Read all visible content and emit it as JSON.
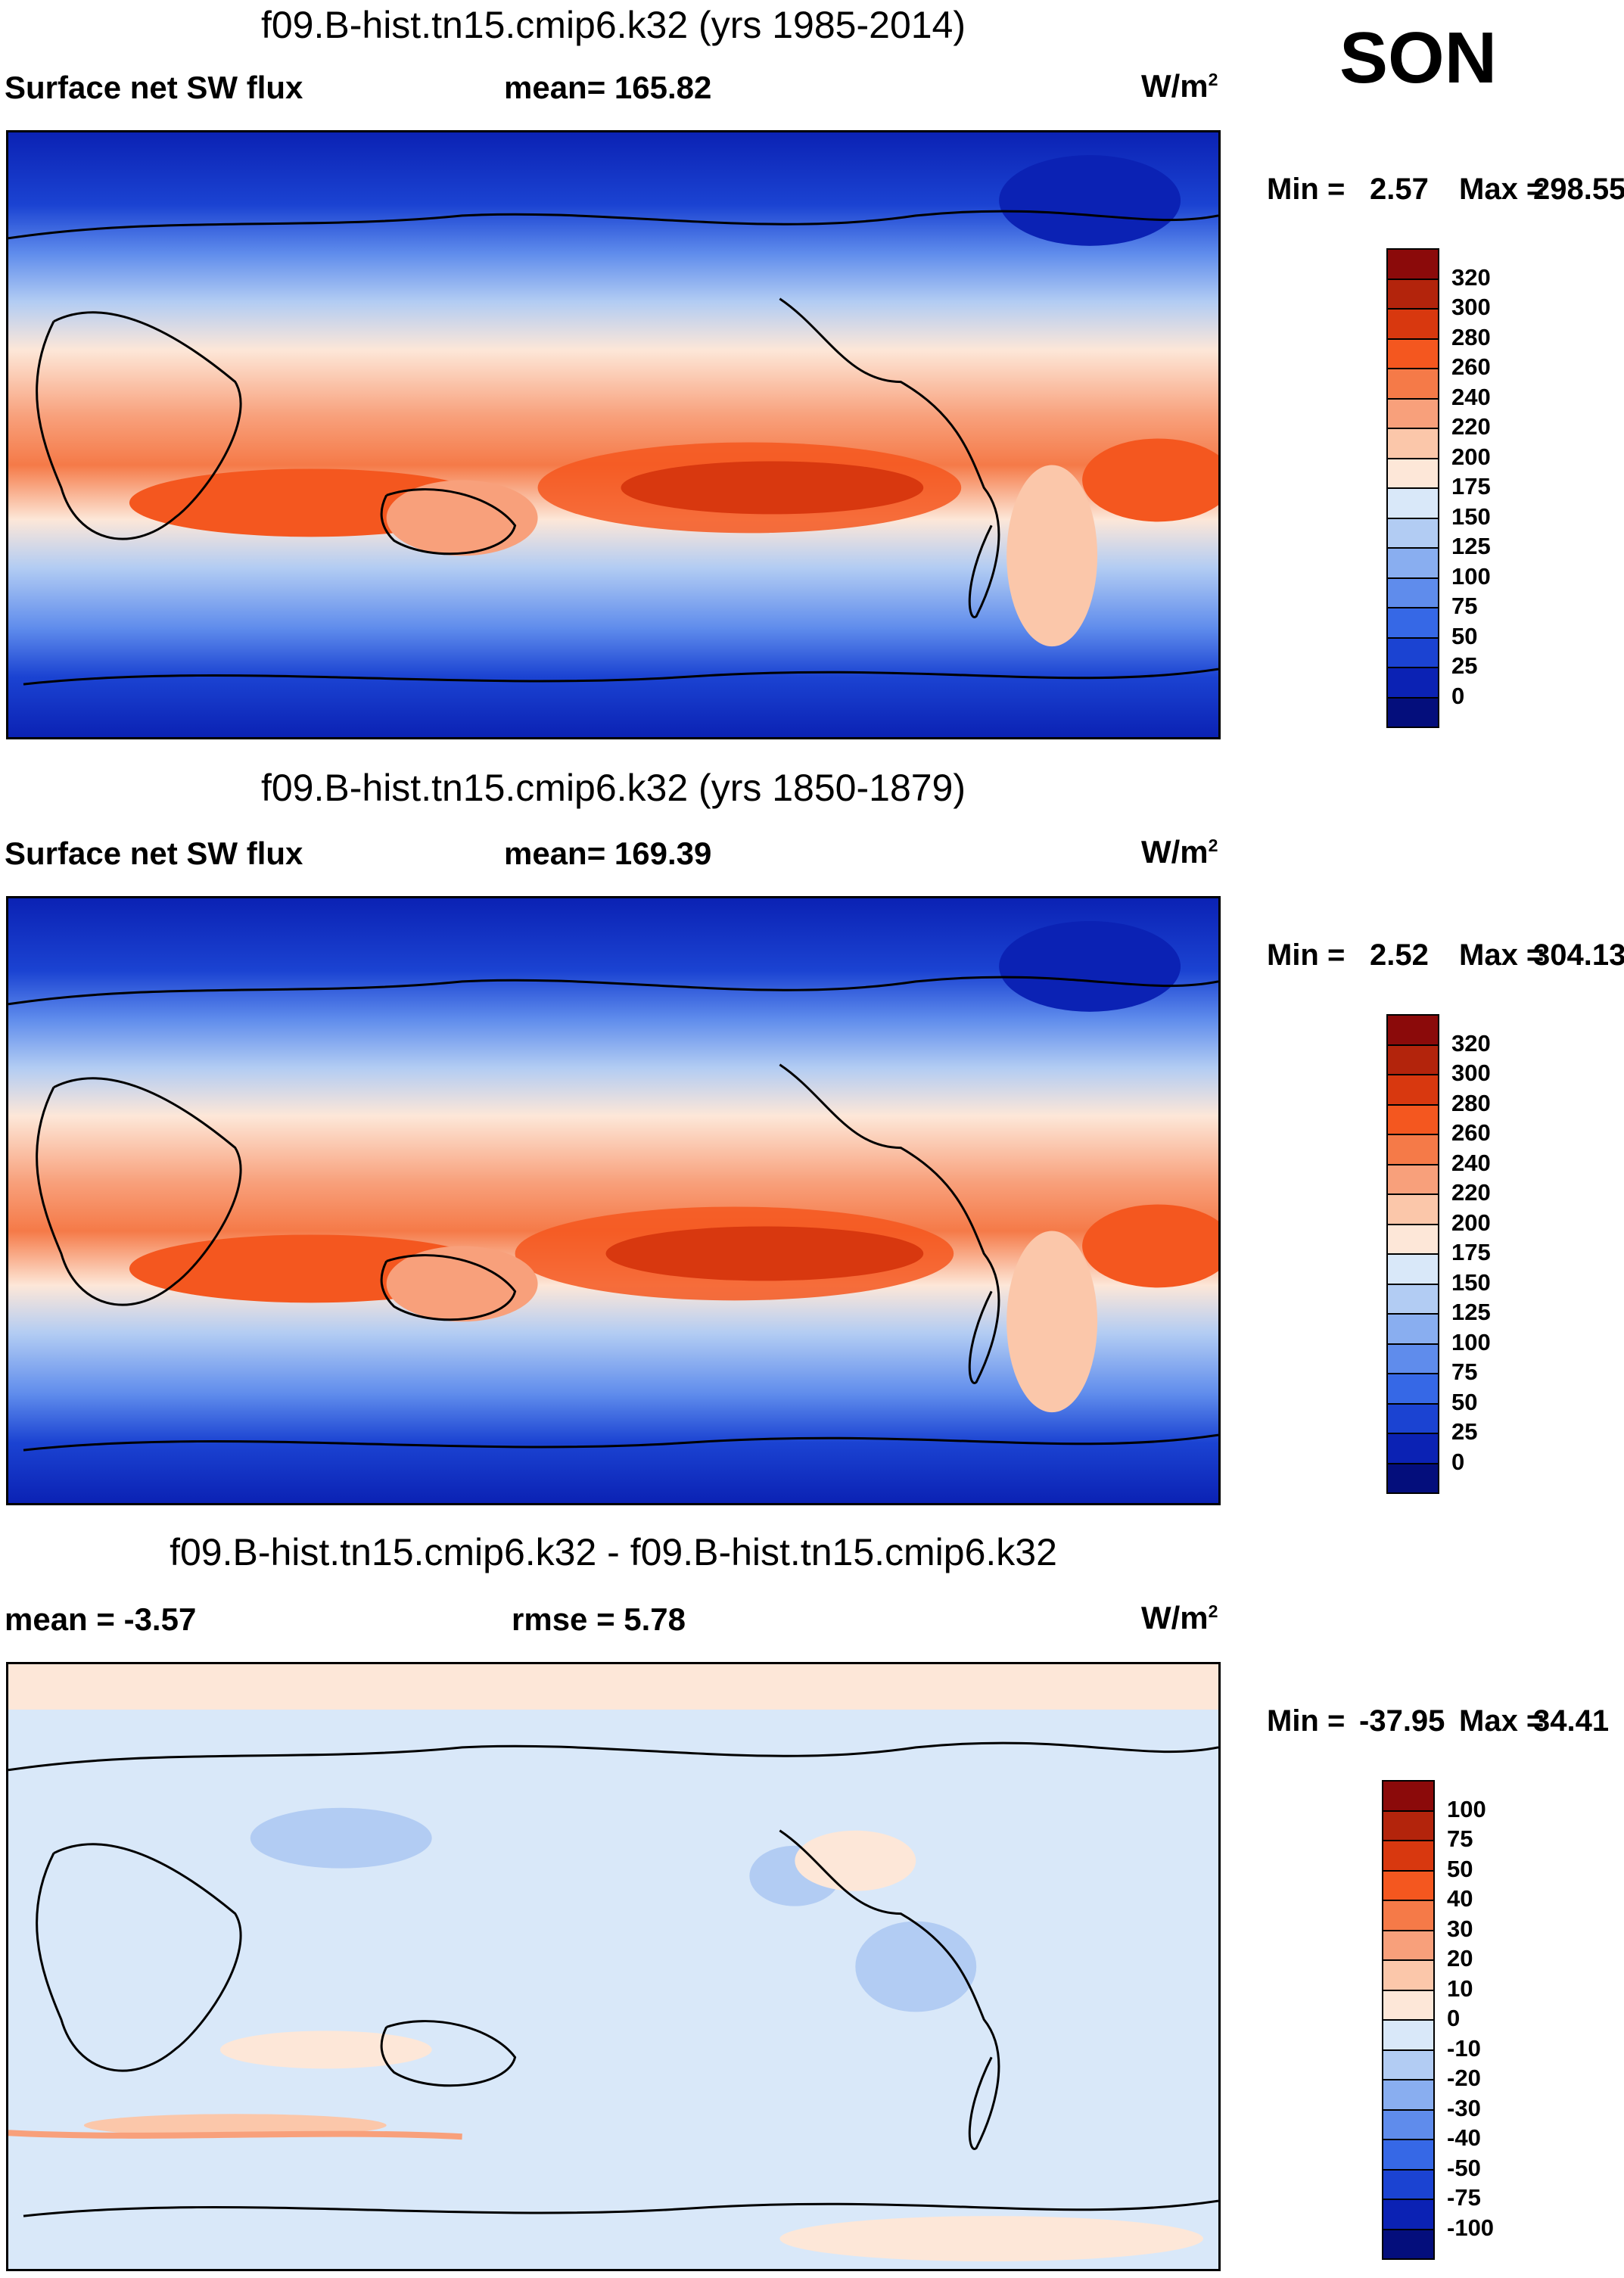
{
  "season": "SON",
  "panels": [
    {
      "title": "f09.B-hist.tn15.cmip6.k32 (yrs 1985-2014)",
      "left_label": "Surface net SW flux",
      "center_label": "mean= 165.82",
      "units": "W/m",
      "units_sup": "2",
      "min_label": "Min =",
      "min_value": "2.57",
      "max_label": "Max =",
      "max_value": "298.55",
      "colorbar": {
        "ticks": [
          "320",
          "300",
          "280",
          "260",
          "240",
          "220",
          "200",
          "175",
          "150",
          "125",
          "100",
          "75",
          "50",
          "25",
          "0"
        ],
        "colors": [
          "#8b0a0a",
          "#b3240c",
          "#d8380f",
          "#f4571f",
          "#f57a48",
          "#f8a07b",
          "#fbc7aa",
          "#fde7d8",
          "#d9e8f9",
          "#b2ccf3",
          "#89aef0",
          "#5f8cec",
          "#3668e6",
          "#1b43d2",
          "#0b22b4",
          "#040e7c"
        ]
      }
    },
    {
      "title": "f09.B-hist.tn15.cmip6.k32 (yrs 1850-1879)",
      "left_label": "Surface net SW flux",
      "center_label": "mean= 169.39",
      "units": "W/m",
      "units_sup": "2",
      "min_label": "Min =",
      "min_value": "2.52",
      "max_label": "Max =",
      "max_value": "304.13",
      "colorbar": {
        "ticks": [
          "320",
          "300",
          "280",
          "260",
          "240",
          "220",
          "200",
          "175",
          "150",
          "125",
          "100",
          "75",
          "50",
          "25",
          "0"
        ],
        "colors": [
          "#8b0a0a",
          "#b3240c",
          "#d8380f",
          "#f4571f",
          "#f57a48",
          "#f8a07b",
          "#fbc7aa",
          "#fde7d8",
          "#d9e8f9",
          "#b2ccf3",
          "#89aef0",
          "#5f8cec",
          "#3668e6",
          "#1b43d2",
          "#0b22b4",
          "#040e7c"
        ]
      }
    },
    {
      "title": "f09.B-hist.tn15.cmip6.k32 - f09.B-hist.tn15.cmip6.k32",
      "left_label": "mean =  -3.57",
      "center_label": "rmse =   5.78",
      "units": "W/m",
      "units_sup": "2",
      "min_label": "Min =",
      "min_value": "-37.95",
      "max_label": "Max =",
      "max_value": "34.41",
      "colorbar": {
        "ticks": [
          "100",
          "75",
          "50",
          "40",
          "30",
          "20",
          "10",
          "0",
          "-10",
          "-20",
          "-30",
          "-40",
          "-50",
          "-75",
          "-100"
        ],
        "colors": [
          "#8b0a0a",
          "#b3240c",
          "#d8380f",
          "#f4571f",
          "#f57a48",
          "#f8a07b",
          "#fbc7aa",
          "#fde7d8",
          "#d9e8f9",
          "#b2ccf3",
          "#89aef0",
          "#5f8cec",
          "#3668e6",
          "#1b43d2",
          "#0b22b4",
          "#040e7c"
        ]
      }
    }
  ],
  "chart_data": [
    {
      "type": "heatmap",
      "title": "f09.B-hist.tn15.cmip6.k32 (yrs 1985-2014)",
      "variable": "Surface net SW flux",
      "season": "SON",
      "units": "W/m2",
      "mean": 165.82,
      "min": 2.57,
      "max": 298.55,
      "contour_levels": [
        0,
        25,
        50,
        75,
        100,
        125,
        150,
        175,
        200,
        220,
        240,
        260,
        280,
        300,
        320
      ]
    },
    {
      "type": "heatmap",
      "title": "f09.B-hist.tn15.cmip6.k32 (yrs 1850-1879)",
      "variable": "Surface net SW flux",
      "season": "SON",
      "units": "W/m2",
      "mean": 169.39,
      "min": 2.52,
      "max": 304.13,
      "contour_levels": [
        0,
        25,
        50,
        75,
        100,
        125,
        150,
        175,
        200,
        220,
        240,
        260,
        280,
        300,
        320
      ]
    },
    {
      "type": "heatmap",
      "title": "f09.B-hist.tn15.cmip6.k32 - f09.B-hist.tn15.cmip6.k32",
      "variable": "difference",
      "season": "SON",
      "units": "W/m2",
      "mean": -3.57,
      "rmse": 5.78,
      "min": -37.95,
      "max": 34.41,
      "contour_levels": [
        -100,
        -75,
        -50,
        -40,
        -30,
        -20,
        -10,
        0,
        10,
        20,
        30,
        40,
        50,
        75,
        100
      ]
    }
  ]
}
